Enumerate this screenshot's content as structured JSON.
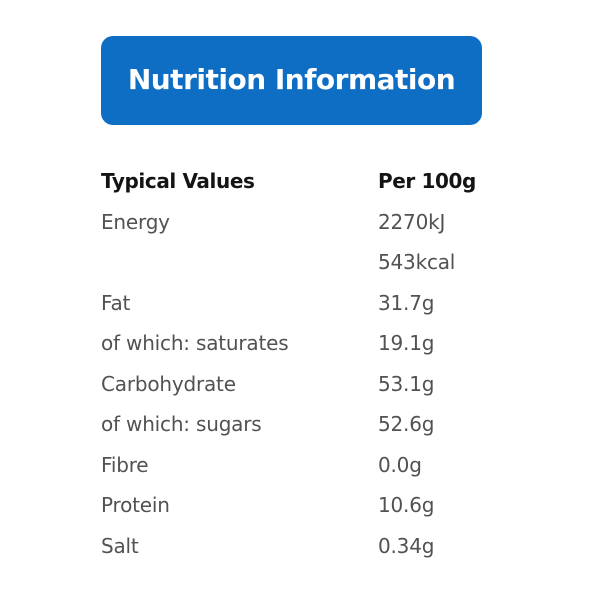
{
  "banner": {
    "title": "Nutrition Information",
    "background_color": "#0d6ec3",
    "text_color": "#ffffff"
  },
  "table": {
    "header": {
      "label": "Typical Values",
      "value": "Per 100g"
    },
    "header_text_color": "#141414",
    "row_text_color": "#525254",
    "rows": [
      {
        "label": "Energy",
        "value": "2270kJ"
      },
      {
        "label": "",
        "value": "543kcal"
      },
      {
        "label": "Fat",
        "value": "31.7g"
      },
      {
        "label": "of which: saturates",
        "value": "19.1g"
      },
      {
        "label": "Carbohydrate",
        "value": "53.1g"
      },
      {
        "label": "of which: sugars",
        "value": "52.6g"
      },
      {
        "label": "Fibre",
        "value": "0.0g"
      },
      {
        "label": "Protein",
        "value": "10.6g"
      },
      {
        "label": "Salt",
        "value": "0.34g"
      }
    ]
  }
}
